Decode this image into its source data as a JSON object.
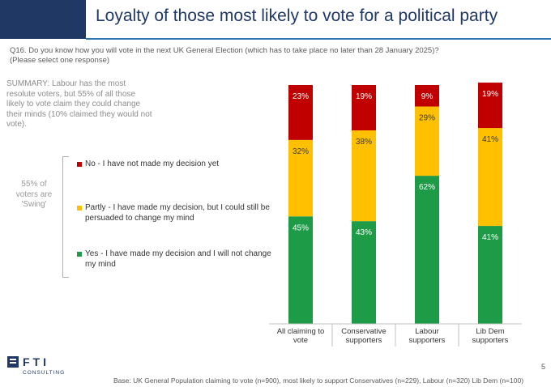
{
  "header": {
    "title": "Loyalty of those most likely to vote for a political party",
    "brand_color": "#1f3864",
    "rule_color": "#2e75b6"
  },
  "question": {
    "line1": "Q16. Do you know how you will vote in the next UK General Election (which has to take place no later than 28 January 2025)?",
    "line2": "(Please select one response)"
  },
  "summary": "SUMMARY: Labour has the most resolute voters, but 55% of all those likely to vote claim they could change their minds (10% claimed they would not vote).",
  "swing_note": "55% of voters are 'Swing'",
  "legend": [
    {
      "label": "No - I have not made my decision yet",
      "color": "#c00000"
    },
    {
      "label": "Partly - I have made my decision, but I could still be persuaded to change my mind",
      "color": "#ffc000"
    },
    {
      "label": "Yes - I have made my decision and I will not change my mind",
      "color": "#1e9b47"
    }
  ],
  "chart_data": {
    "type": "bar",
    "stacked": true,
    "categories": [
      "All claiming to vote",
      "Conservative supporters",
      "Labour supporters",
      "Lib Dem supporters"
    ],
    "series": [
      {
        "name": "Yes - I have made my decision and I will not change my mind",
        "values": [
          45,
          43,
          62,
          41
        ],
        "color": "#1e9b47",
        "label_color": "#ffffff"
      },
      {
        "name": "Partly - I have made my decision, but I could still be persuaded to change my mind",
        "values": [
          32,
          38,
          29,
          41
        ],
        "color": "#ffc000",
        "label_color": "#3a3a3a"
      },
      {
        "name": "No - I have not made my decision yet",
        "values": [
          23,
          19,
          9,
          19
        ],
        "color": "#c00000",
        "label_color": "#ffffff"
      }
    ],
    "labels": [
      [
        "45%",
        "43%",
        "62%",
        "41%"
      ],
      [
        "32%",
        "38%",
        "29%",
        "41%"
      ],
      [
        "23%",
        "19%",
        "9%",
        "19%"
      ]
    ],
    "category_lines": [
      [
        "All claiming to",
        "vote"
      ],
      [
        "Conservative",
        "supporters"
      ],
      [
        "Labour",
        "supporters"
      ],
      [
        "Lib Dem",
        "supporters"
      ]
    ],
    "ylim": [
      0,
      100
    ],
    "grid": false,
    "legend_position": "left"
  },
  "logo": {
    "wordmark": "FTI",
    "sub": "CONSULTING"
  },
  "page_number": "5",
  "base_note": "Base: UK General Population claiming to vote (n=900), most likely to support Conservatives (n=229), Labour (n=320) Lib Dem (n=100)"
}
